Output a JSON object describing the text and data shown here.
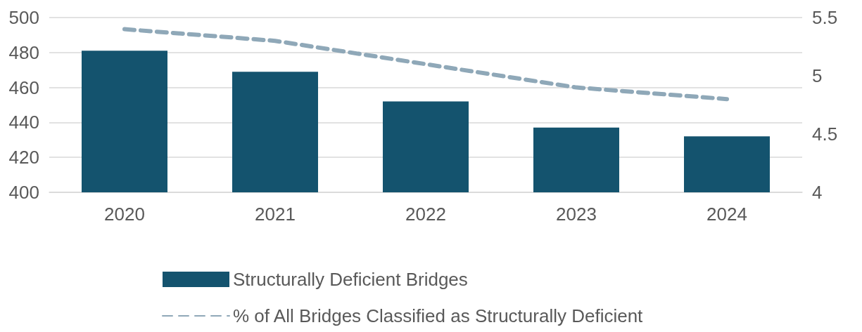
{
  "chart_data": {
    "type": "bar",
    "categories": [
      "2020",
      "2021",
      "2022",
      "2023",
      "2024"
    ],
    "series": [
      {
        "name": "Structurally Deficient Bridges",
        "color": "#14536e",
        "values": [
          481,
          469,
          452,
          437,
          432
        ]
      },
      {
        "name": "% of All Bridges Classified as Structurally Deficient",
        "type": "line",
        "axis": "y2",
        "color": "#8fa8b8",
        "line_style": "dashed",
        "marker": "none",
        "values": [
          5.4,
          5.3,
          5.1,
          4.9,
          4.8
        ]
      }
    ],
    "ylim": [
      400,
      500
    ],
    "yticks": [
      400,
      420,
      440,
      460,
      480,
      500
    ],
    "y2lim": [
      4,
      5.5
    ],
    "y2ticks": [
      4,
      4.5,
      5,
      5.5
    ],
    "grid": "y",
    "legend": "bottom"
  }
}
